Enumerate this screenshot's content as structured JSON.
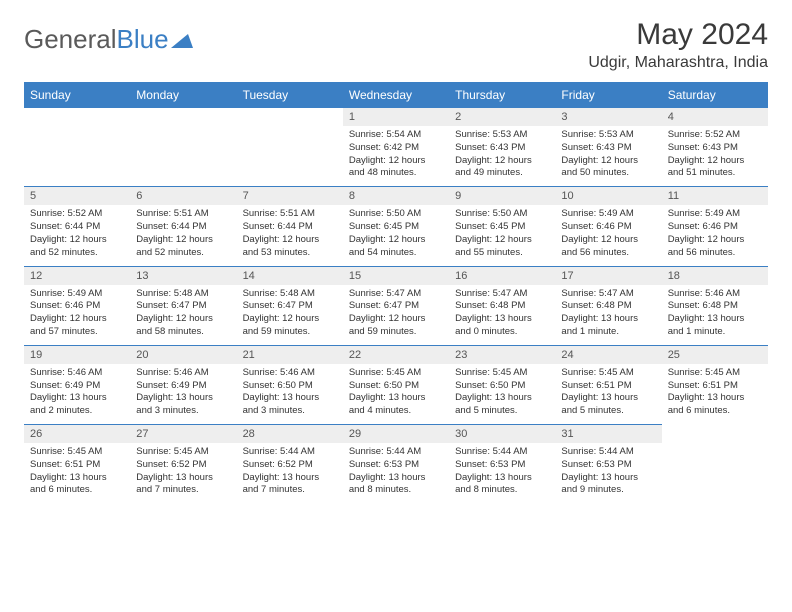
{
  "brand": {
    "part1": "General",
    "part2": "Blue"
  },
  "title": "May 2024",
  "location": "Udgir, Maharashtra, India",
  "header_bg": "#3b7fc4",
  "weekdays": [
    "Sunday",
    "Monday",
    "Tuesday",
    "Wednesday",
    "Thursday",
    "Friday",
    "Saturday"
  ],
  "weeks": [
    {
      "nums": [
        "",
        "",
        "",
        "1",
        "2",
        "3",
        "4"
      ],
      "cells": [
        null,
        null,
        null,
        {
          "sr": "5:54 AM",
          "ss": "6:42 PM",
          "dl": "12 hours and 48 minutes."
        },
        {
          "sr": "5:53 AM",
          "ss": "6:43 PM",
          "dl": "12 hours and 49 minutes."
        },
        {
          "sr": "5:53 AM",
          "ss": "6:43 PM",
          "dl": "12 hours and 50 minutes."
        },
        {
          "sr": "5:52 AM",
          "ss": "6:43 PM",
          "dl": "12 hours and 51 minutes."
        }
      ]
    },
    {
      "nums": [
        "5",
        "6",
        "7",
        "8",
        "9",
        "10",
        "11"
      ],
      "cells": [
        {
          "sr": "5:52 AM",
          "ss": "6:44 PM",
          "dl": "12 hours and 52 minutes."
        },
        {
          "sr": "5:51 AM",
          "ss": "6:44 PM",
          "dl": "12 hours and 52 minutes."
        },
        {
          "sr": "5:51 AM",
          "ss": "6:44 PM",
          "dl": "12 hours and 53 minutes."
        },
        {
          "sr": "5:50 AM",
          "ss": "6:45 PM",
          "dl": "12 hours and 54 minutes."
        },
        {
          "sr": "5:50 AM",
          "ss": "6:45 PM",
          "dl": "12 hours and 55 minutes."
        },
        {
          "sr": "5:49 AM",
          "ss": "6:46 PM",
          "dl": "12 hours and 56 minutes."
        },
        {
          "sr": "5:49 AM",
          "ss": "6:46 PM",
          "dl": "12 hours and 56 minutes."
        }
      ]
    },
    {
      "nums": [
        "12",
        "13",
        "14",
        "15",
        "16",
        "17",
        "18"
      ],
      "cells": [
        {
          "sr": "5:49 AM",
          "ss": "6:46 PM",
          "dl": "12 hours and 57 minutes."
        },
        {
          "sr": "5:48 AM",
          "ss": "6:47 PM",
          "dl": "12 hours and 58 minutes."
        },
        {
          "sr": "5:48 AM",
          "ss": "6:47 PM",
          "dl": "12 hours and 59 minutes."
        },
        {
          "sr": "5:47 AM",
          "ss": "6:47 PM",
          "dl": "12 hours and 59 minutes."
        },
        {
          "sr": "5:47 AM",
          "ss": "6:48 PM",
          "dl": "13 hours and 0 minutes."
        },
        {
          "sr": "5:47 AM",
          "ss": "6:48 PM",
          "dl": "13 hours and 1 minute."
        },
        {
          "sr": "5:46 AM",
          "ss": "6:48 PM",
          "dl": "13 hours and 1 minute."
        }
      ]
    },
    {
      "nums": [
        "19",
        "20",
        "21",
        "22",
        "23",
        "24",
        "25"
      ],
      "cells": [
        {
          "sr": "5:46 AM",
          "ss": "6:49 PM",
          "dl": "13 hours and 2 minutes."
        },
        {
          "sr": "5:46 AM",
          "ss": "6:49 PM",
          "dl": "13 hours and 3 minutes."
        },
        {
          "sr": "5:46 AM",
          "ss": "6:50 PM",
          "dl": "13 hours and 3 minutes."
        },
        {
          "sr": "5:45 AM",
          "ss": "6:50 PM",
          "dl": "13 hours and 4 minutes."
        },
        {
          "sr": "5:45 AM",
          "ss": "6:50 PM",
          "dl": "13 hours and 5 minutes."
        },
        {
          "sr": "5:45 AM",
          "ss": "6:51 PM",
          "dl": "13 hours and 5 minutes."
        },
        {
          "sr": "5:45 AM",
          "ss": "6:51 PM",
          "dl": "13 hours and 6 minutes."
        }
      ]
    },
    {
      "nums": [
        "26",
        "27",
        "28",
        "29",
        "30",
        "31",
        ""
      ],
      "cells": [
        {
          "sr": "5:45 AM",
          "ss": "6:51 PM",
          "dl": "13 hours and 6 minutes."
        },
        {
          "sr": "5:45 AM",
          "ss": "6:52 PM",
          "dl": "13 hours and 7 minutes."
        },
        {
          "sr": "5:44 AM",
          "ss": "6:52 PM",
          "dl": "13 hours and 7 minutes."
        },
        {
          "sr": "5:44 AM",
          "ss": "6:53 PM",
          "dl": "13 hours and 8 minutes."
        },
        {
          "sr": "5:44 AM",
          "ss": "6:53 PM",
          "dl": "13 hours and 8 minutes."
        },
        {
          "sr": "5:44 AM",
          "ss": "6:53 PM",
          "dl": "13 hours and 9 minutes."
        },
        null
      ]
    }
  ],
  "labels": {
    "sunrise": "Sunrise: ",
    "sunset": "Sunset: ",
    "daylight": "Daylight: "
  }
}
